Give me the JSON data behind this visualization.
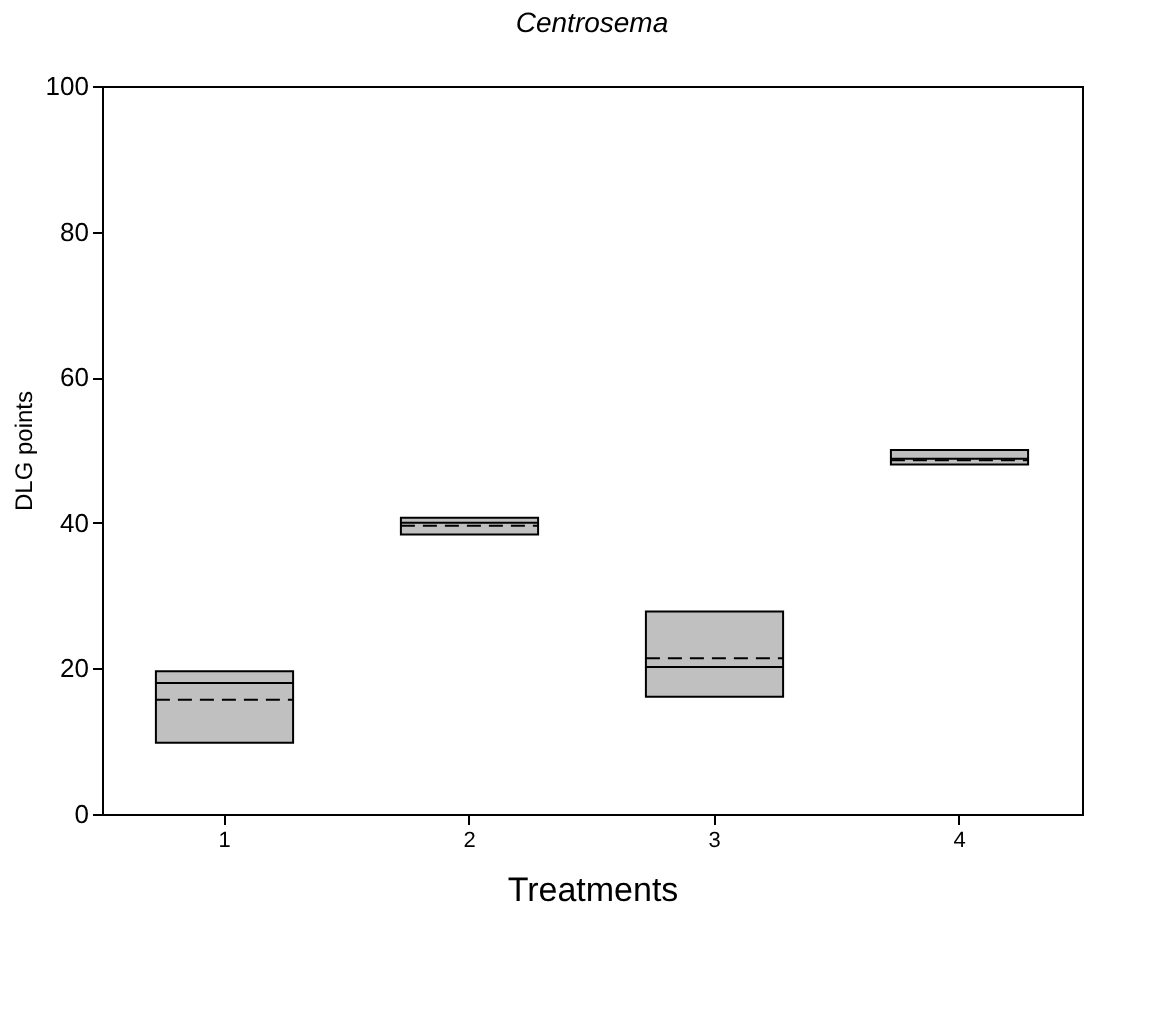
{
  "chart_data": {
    "type": "box",
    "title": "Centrosema",
    "xlabel": "Treatments",
    "ylabel": "DLG points",
    "categories": [
      "1",
      "2",
      "3",
      "4"
    ],
    "boxes": [
      {
        "low": 9.8,
        "q1": 9.8,
        "median": 18.0,
        "q3": 19.6,
        "high": 19.6,
        "mean": 15.7
      },
      {
        "low": 38.4,
        "q1": 38.4,
        "median": 40.0,
        "q3": 40.7,
        "high": 40.7,
        "mean": 39.6
      },
      {
        "low": 16.1,
        "q1": 16.1,
        "median": 20.2,
        "q3": 27.8,
        "high": 27.8,
        "mean": 21.4
      },
      {
        "low": 48.0,
        "q1": 48.0,
        "median": 48.8,
        "q3": 50.0,
        "high": 50.0,
        "mean": 48.6
      }
    ],
    "color": "#c0c0c0",
    "ylim": [
      0,
      100
    ],
    "yticks": [
      0,
      20,
      40,
      60,
      80,
      100
    ],
    "grid": false
  }
}
